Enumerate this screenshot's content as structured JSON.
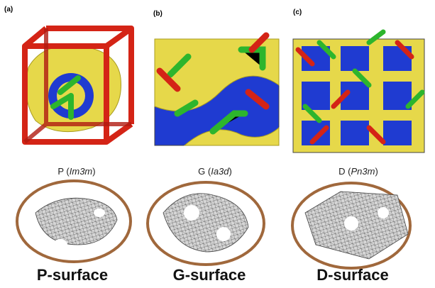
{
  "panels": [
    {
      "label": "(a)",
      "caption": {
        "prefix": "P (",
        "italic": "Im3m",
        "suffix": ")"
      },
      "surface_label": "P-surface"
    },
    {
      "label": "(b)",
      "caption": {
        "prefix": "G (",
        "italic": "Ia3d",
        "suffix": ")"
      },
      "surface_label": "G-surface"
    },
    {
      "label": "(c)",
      "caption": {
        "prefix": "D (",
        "italic": "Pn3m",
        "suffix": ")"
      },
      "surface_label": "D-surface"
    }
  ]
}
